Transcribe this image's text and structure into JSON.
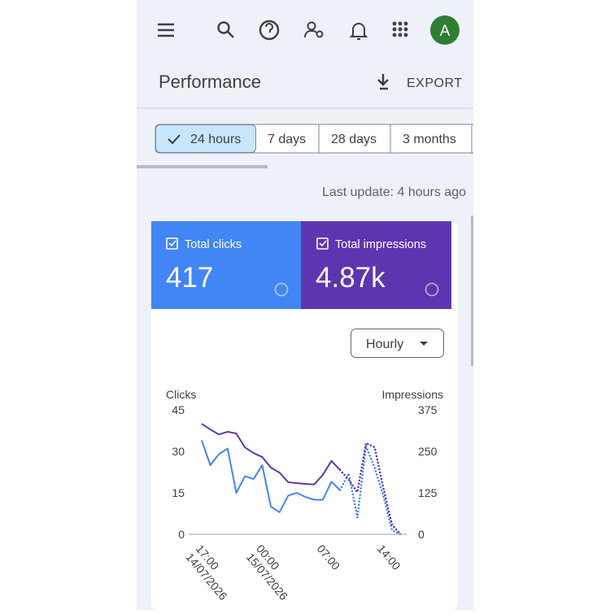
{
  "header": {
    "avatar": "A",
    "title": "Performance",
    "export": "EXPORT"
  },
  "tabs": [
    "24 hours",
    "7 days",
    "28 days",
    "3 months"
  ],
  "last_update": "Last update: 4 hours ago",
  "metrics": [
    {
      "label": "Total clicks",
      "value": "417",
      "color": "#4285f4"
    },
    {
      "label": "Total impressions",
      "value": "4.87k",
      "color": "#5e35b1"
    }
  ],
  "dropdown": "Hourly",
  "chart_data": {
    "type": "line",
    "y_label": "Clicks",
    "y2_label": "Impressions",
    "x": [
      0,
      1,
      2,
      3,
      4,
      5,
      6,
      7,
      8,
      9,
      10,
      11,
      12,
      13,
      14,
      15,
      16,
      17,
      18,
      19,
      20,
      21,
      22,
      23
    ],
    "xlim": [
      -1.5,
      23.7
    ],
    "xticks": [
      {
        "value": 0,
        "label": "17:00"
      },
      {
        "value": 7,
        "label": "00:00"
      },
      {
        "value": 14,
        "label": "07:00"
      },
      {
        "value": 21,
        "label": "14:00"
      }
    ],
    "xtick_dates": [
      "14/07/2026",
      "15/07/2026",
      null,
      null
    ],
    "ylim": [
      0,
      45
    ],
    "yticks": [
      0,
      15,
      30,
      45
    ],
    "y2lim": [
      0,
      375
    ],
    "y2ticks": [
      0,
      125,
      250,
      375
    ],
    "series": [
      {
        "color": "#4285f4",
        "axis": "y",
        "dashed": false,
        "values": [
          34,
          25,
          29,
          31,
          15,
          21,
          20,
          25,
          10,
          8,
          14,
          15,
          13.5,
          12.5,
          12.5,
          19,
          16,
          null,
          null,
          null,
          null,
          null,
          null,
          null
        ]
      },
      {
        "color": "#4285f4",
        "axis": "y",
        "dashed": true,
        "values": [
          null,
          null,
          null,
          null,
          null,
          null,
          null,
          null,
          null,
          null,
          null,
          null,
          null,
          null,
          null,
          null,
          16,
          22,
          6,
          32,
          24,
          14,
          1.5,
          0
        ]
      },
      {
        "color": "#5e35b1",
        "axis": "y2",
        "dashed": false,
        "values": [
          333,
          316,
          301,
          309,
          304,
          262,
          245,
          233,
          201,
          186,
          157,
          154,
          152,
          150,
          179,
          221,
          194,
          null,
          null,
          null,
          null,
          null,
          null,
          null
        ]
      },
      {
        "color": "#5e35b1",
        "axis": "y2",
        "dashed": true,
        "values": [
          null,
          null,
          null,
          null,
          null,
          null,
          null,
          null,
          null,
          null,
          null,
          null,
          null,
          null,
          null,
          null,
          194,
          164,
          127,
          275,
          262,
          140,
          29,
          0
        ]
      }
    ]
  }
}
